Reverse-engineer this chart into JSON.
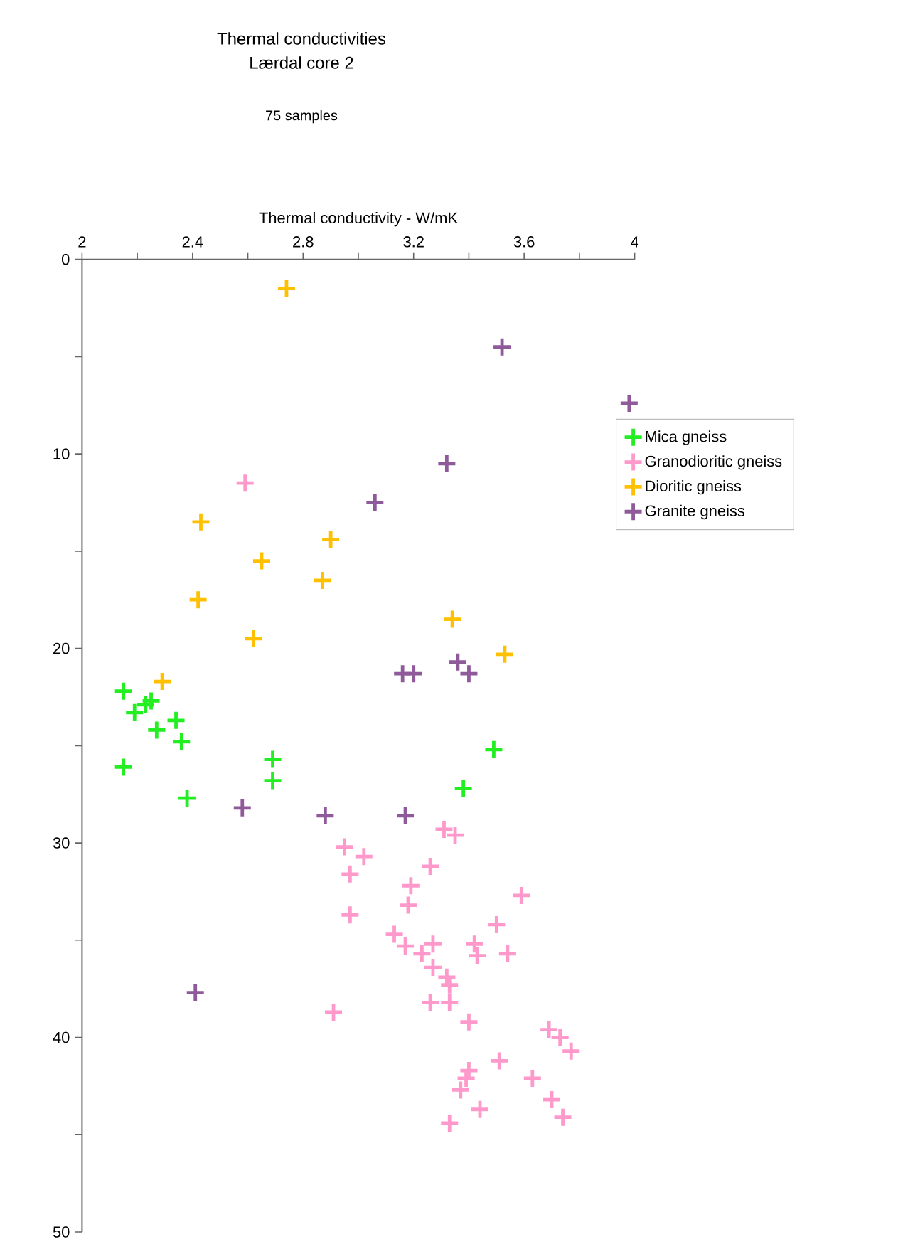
{
  "chart_data": {
    "type": "scatter",
    "title": "Thermal conductivities",
    "subtitle": "Lærdal core 2",
    "annotations": [
      "75 samples"
    ],
    "xlabel": "Thermal conductivity - W/mK",
    "xlim": [
      2,
      4
    ],
    "ylim": [
      50,
      0
    ],
    "xticks": [
      2,
      {
        "value": 2.2,
        "label": null
      },
      2.4,
      {
        "value": 2.6,
        "label": null
      },
      2.8,
      {
        "value": 3.0,
        "label": null
      },
      3.2,
      {
        "value": 3.4,
        "label": null
      },
      3.6,
      {
        "value": 3.8,
        "label": null
      },
      4
    ],
    "yticks": [
      0,
      {
        "value": 5,
        "label": null
      },
      10,
      {
        "value": 15,
        "label": null
      },
      20,
      {
        "value": 25,
        "label": null
      },
      30,
      {
        "value": 35,
        "label": null
      },
      40,
      {
        "value": 45,
        "label": null
      },
      50
    ],
    "marker": "cross",
    "legend": "right",
    "grid": false,
    "series": [
      {
        "name": "Mica gneiss",
        "color": "#22ee22",
        "x": [
          2.15,
          2.25,
          2.19,
          2.23,
          2.27,
          2.34,
          2.36,
          2.15,
          2.38,
          2.69,
          2.69,
          3.49,
          3.38
        ],
        "values": [
          22.2,
          22.7,
          23.3,
          22.9,
          24.2,
          23.7,
          24.8,
          26.1,
          27.7,
          25.7,
          26.8,
          25.2,
          27.2
        ]
      },
      {
        "name": "Granodioritic gneiss",
        "color": "#ff99cc",
        "x": [
          2.59,
          3.31,
          3.35,
          2.95,
          3.02,
          2.97,
          3.26,
          3.19,
          3.59,
          3.18,
          2.97,
          3.5,
          3.13,
          3.17,
          3.27,
          3.23,
          3.42,
          3.43,
          3.54,
          3.27,
          3.32,
          3.33,
          2.91,
          3.26,
          3.33,
          3.4,
          3.69,
          3.73,
          3.77,
          3.51,
          3.4,
          3.39,
          3.37,
          3.63,
          3.7,
          3.74,
          3.44,
          3.33
        ],
        "values": [
          11.5,
          29.3,
          29.6,
          30.2,
          30.7,
          31.6,
          31.2,
          32.2,
          32.7,
          33.2,
          33.7,
          34.2,
          34.7,
          35.3,
          35.2,
          35.7,
          35.2,
          35.8,
          35.7,
          36.4,
          36.9,
          37.3,
          38.7,
          38.2,
          38.2,
          39.2,
          39.6,
          40.0,
          40.7,
          41.2,
          41.7,
          42.1,
          42.7,
          42.1,
          43.2,
          44.1,
          43.7,
          44.4
        ]
      },
      {
        "name": "Dioritic gneiss",
        "color": "#ffc000",
        "x": [
          2.74,
          2.43,
          2.9,
          2.65,
          2.87,
          2.42,
          2.62,
          3.34,
          3.53,
          2.29
        ],
        "values": [
          1.5,
          13.5,
          14.4,
          15.5,
          16.5,
          17.5,
          19.5,
          18.5,
          20.3,
          21.7
        ]
      },
      {
        "name": "Granite gneiss",
        "color": "#8e5a9a",
        "x": [
          3.52,
          3.98,
          3.32,
          3.06,
          3.16,
          3.2,
          3.36,
          3.4,
          2.58,
          2.88,
          3.17,
          2.41
        ],
        "values": [
          4.5,
          7.4,
          10.5,
          12.5,
          21.3,
          21.3,
          20.7,
          21.3,
          28.2,
          28.6,
          28.6,
          37.7
        ]
      }
    ]
  }
}
